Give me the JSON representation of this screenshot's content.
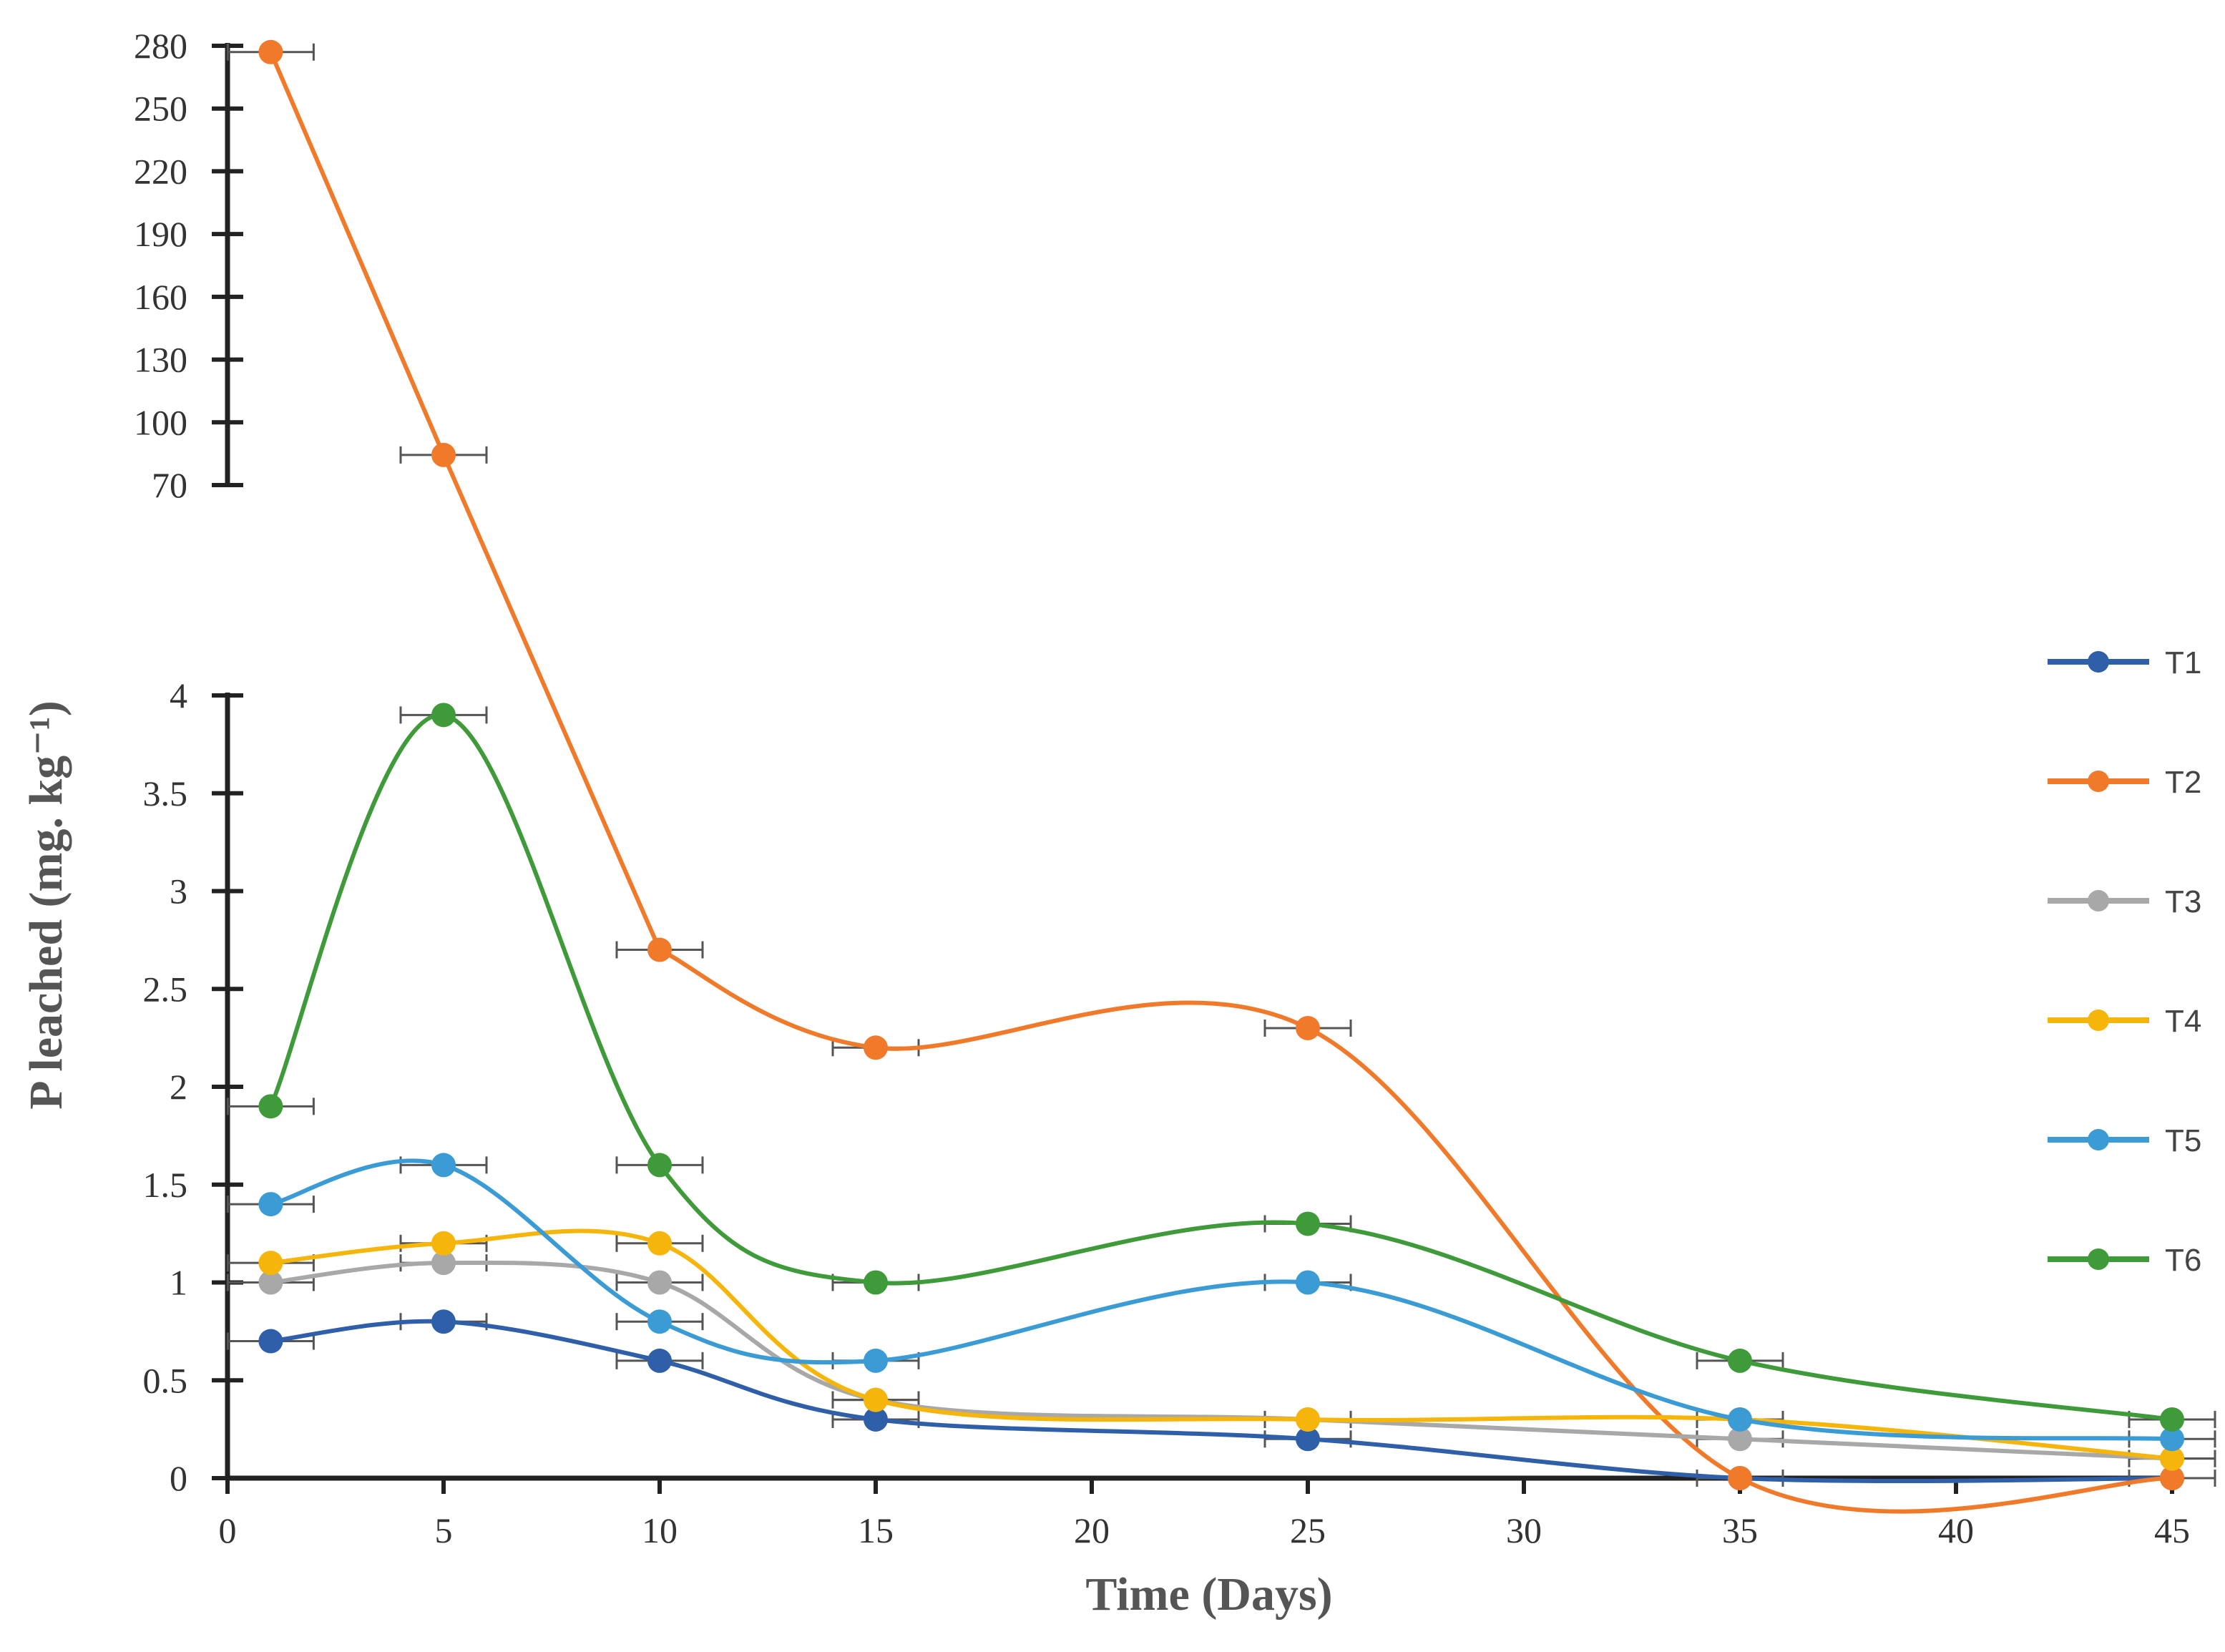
{
  "chart_data": {
    "type": "line",
    "xlabel": "Time (Days)",
    "ylabel": "P leached (mg. kg⁻¹)",
    "x_ticks": [
      "0",
      "5",
      "10",
      "15",
      "20",
      "25",
      "30",
      "35",
      "40",
      "45"
    ],
    "xlim": [
      0,
      45
    ],
    "lower_axis": {
      "ylim": [
        0,
        4
      ],
      "ticks": [
        "0",
        "0.5",
        "1",
        "1.5",
        "2",
        "2.5",
        "3",
        "3.5",
        "4"
      ]
    },
    "upper_axis": {
      "ylim": [
        70,
        280
      ],
      "ticks": [
        "70",
        "100",
        "130",
        "160",
        "190",
        "220",
        "250",
        "280"
      ]
    },
    "x": [
      1,
      5,
      10,
      15,
      25,
      35,
      45
    ],
    "series": [
      {
        "name": "T1",
        "color": "#2e5fa8",
        "values": [
          0.7,
          0.8,
          0.6,
          0.3,
          0.2,
          0.0,
          0.0
        ]
      },
      {
        "name": "T2",
        "color": "#f07a2a",
        "values": [
          277,
          84.4,
          2.7,
          2.2,
          2.3,
          0.0,
          0.0
        ]
      },
      {
        "name": "T3",
        "color": "#a8a8a8",
        "values": [
          1.0,
          1.1,
          1.0,
          0.4,
          0.3,
          0.2,
          0.1
        ]
      },
      {
        "name": "T4",
        "color": "#f5b50a",
        "values": [
          1.1,
          1.2,
          1.2,
          0.4,
          0.3,
          0.3,
          0.1
        ]
      },
      {
        "name": "T5",
        "color": "#3a9bd5",
        "values": [
          1.4,
          1.6,
          0.8,
          0.6,
          1.0,
          0.3,
          0.2
        ]
      },
      {
        "name": "T6",
        "color": "#3f9a3a",
        "values": [
          1.9,
          3.9,
          1.6,
          1.0,
          1.3,
          0.6,
          0.3
        ]
      }
    ],
    "legend_position": "right",
    "grid": false
  }
}
